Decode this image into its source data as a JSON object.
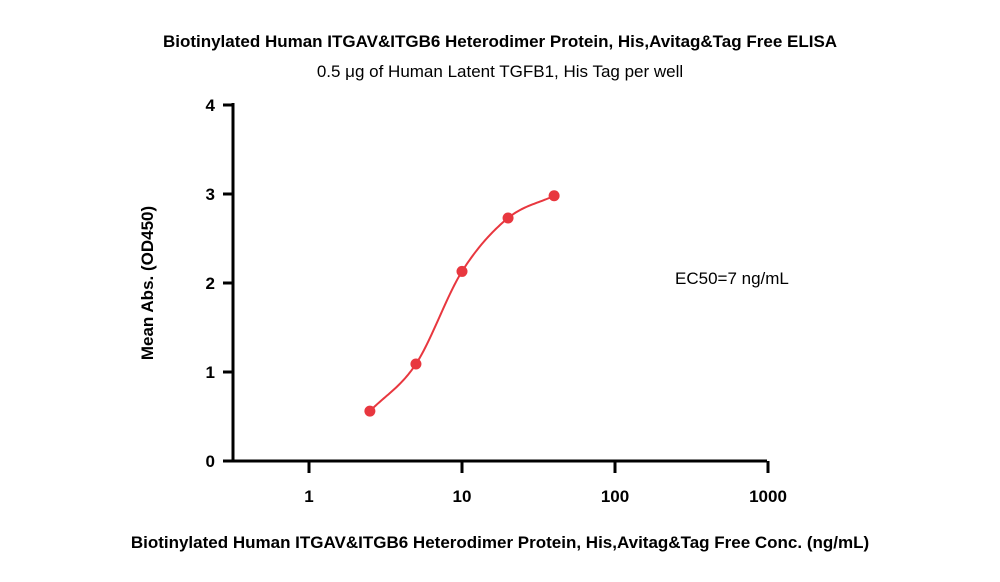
{
  "chart_data": {
    "type": "scatter",
    "title": "Biotinylated Human ITGAV&ITGB6 Heterodimer Protein, His,Avitag&Tag Free ELISA",
    "subtitle": "0.5 μg of Human Latent TGFB1, His Tag per well",
    "xlabel": "Biotinylated Human ITGAV&ITGB6 Heterodimer Protein, His,Avitag&Tag Free Conc. (ng/mL)",
    "ylabel": "Mean Abs. (OD450)",
    "x_scale": "log",
    "xlim": [
      0.5,
      1000
    ],
    "ylim": [
      0,
      4
    ],
    "x_ticks": [
      1,
      10,
      100,
      1000
    ],
    "x_tick_labels": [
      "1",
      "10",
      "100",
      "1000"
    ],
    "y_ticks": [
      0,
      1,
      2,
      3,
      4
    ],
    "y_tick_labels": [
      "0",
      "1",
      "2",
      "3",
      "4"
    ],
    "grid": false,
    "series": [
      {
        "color": "#e8373f",
        "x": [
          2.5,
          5,
          10,
          20,
          40
        ],
        "y": [
          0.56,
          1.09,
          2.13,
          2.73,
          2.98
        ]
      }
    ],
    "annotations": [
      {
        "text": "EC50=7 ng/mL"
      }
    ]
  }
}
